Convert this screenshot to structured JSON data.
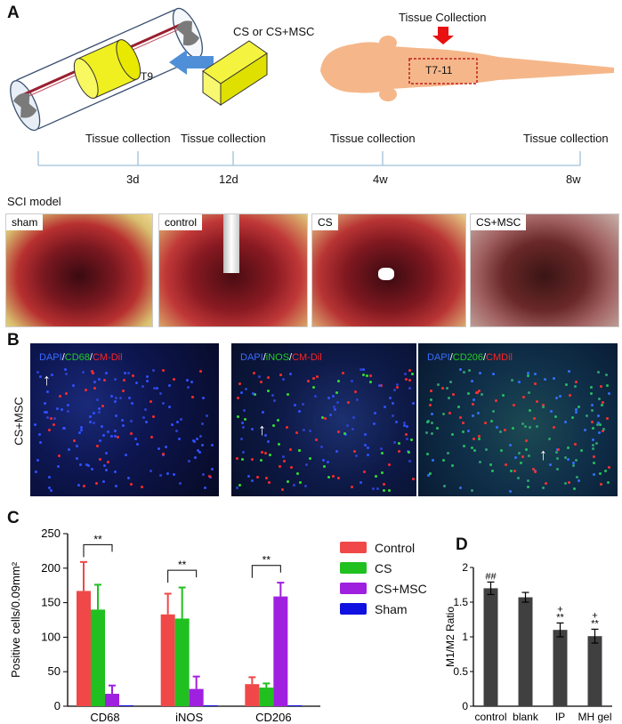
{
  "panelA": {
    "letter": "A",
    "treatment_label": "CS or CS+MSC",
    "segment_label": "T9",
    "tissue_collection_label": "Tissue Collection",
    "segment_range_label": "T7-11",
    "timeline": {
      "collection_label": "Tissue collection",
      "points": [
        "3d",
        "12d",
        "4w",
        "8w"
      ]
    },
    "sci_model_label": "SCI model",
    "photos": [
      {
        "label": "sham"
      },
      {
        "label": "control"
      },
      {
        "label": "CS"
      },
      {
        "label": "CS+MSC"
      }
    ]
  },
  "panelB": {
    "letter": "B",
    "row_label": "CS+MSC",
    "images": [
      {
        "parts": [
          {
            "t": "DAPI",
            "c": "#3a6cff"
          },
          {
            "t": "/",
            "c": "#ffffff"
          },
          {
            "t": "CD68",
            "c": "#22cc22"
          },
          {
            "t": "/",
            "c": "#ffffff"
          },
          {
            "t": "CM-Dil",
            "c": "#ff2222"
          }
        ]
      },
      {
        "parts": [
          {
            "t": "DAPI",
            "c": "#3a6cff"
          },
          {
            "t": "/",
            "c": "#ffffff"
          },
          {
            "t": "iNOS",
            "c": "#22cc22"
          },
          {
            "t": "/",
            "c": "#ffffff"
          },
          {
            "t": "CM-Dil",
            "c": "#ff2222"
          }
        ]
      },
      {
        "parts": [
          {
            "t": "DAPI",
            "c": "#3a6cff"
          },
          {
            "t": "/",
            "c": "#ffffff"
          },
          {
            "t": "CD206",
            "c": "#22cc22"
          },
          {
            "t": "/",
            "c": "#ffffff"
          },
          {
            "t": "CMDil",
            "c": "#ff2222"
          }
        ]
      }
    ]
  },
  "panelC": {
    "letter": "C",
    "legend": [
      {
        "name": "Control",
        "color": "#f04848"
      },
      {
        "name": "CS",
        "color": "#20c020"
      },
      {
        "name": "CS+MSC",
        "color": "#a020e0"
      },
      {
        "name": "Sham",
        "color": "#1010e0"
      }
    ],
    "significance": "**"
  },
  "panelD": {
    "letter": "D",
    "marks": [
      "##",
      "+",
      "**",
      "+",
      "**"
    ]
  },
  "chart_data": [
    {
      "type": "bar",
      "categories": [
        "CD68",
        "iNOS",
        "CD206"
      ],
      "series": [
        {
          "name": "Control",
          "values": [
            167,
            133,
            32
          ],
          "errors": [
            42,
            30,
            10
          ]
        },
        {
          "name": "CS",
          "values": [
            140,
            127,
            27
          ],
          "errors": [
            36,
            45,
            6
          ]
        },
        {
          "name": "CS+MSC",
          "values": [
            18,
            25,
            159
          ],
          "errors": [
            12,
            18,
            20
          ]
        },
        {
          "name": "Sham",
          "values": [
            0,
            0,
            0
          ],
          "errors": [
            0,
            0,
            0
          ]
        }
      ],
      "ylabel": "Positive cells/0.09mm²",
      "ylim": [
        0,
        250
      ],
      "yticks": [
        0,
        50,
        100,
        150,
        200,
        250
      ],
      "legend_position": "right"
    },
    {
      "type": "bar",
      "categories": [
        "control",
        "blank",
        "IP",
        "MH gel"
      ],
      "values": [
        1.7,
        1.57,
        1.1,
        1.01
      ],
      "errors": [
        0.09,
        0.07,
        0.1,
        0.1
      ],
      "ylabel": "M1/M2 Ratio",
      "ylim": [
        0,
        2
      ],
      "yticks": [
        "0",
        "0.5",
        "1",
        "1.5",
        "2"
      ],
      "bar_color": "#404040"
    }
  ]
}
